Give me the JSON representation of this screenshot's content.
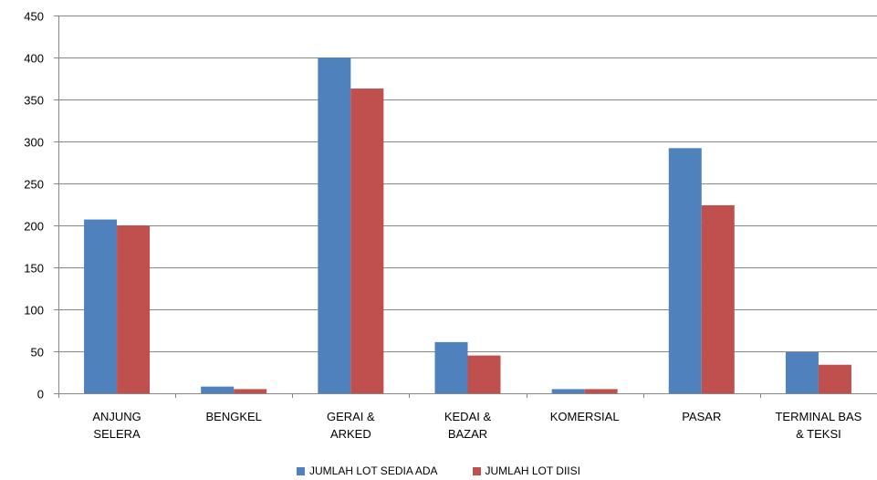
{
  "chart_data": {
    "type": "bar",
    "title": "",
    "xlabel": "",
    "ylabel": "",
    "ylim": [
      0,
      450
    ],
    "yticks": [
      0,
      50,
      100,
      150,
      200,
      250,
      300,
      350,
      400,
      450
    ],
    "grid": true,
    "legend_position": "bottom",
    "categories": [
      [
        "ANJUNG",
        "SELERA"
      ],
      [
        "BENGKEL"
      ],
      [
        "GERAI &",
        "ARKED"
      ],
      [
        "KEDAI &",
        "BAZAR"
      ],
      [
        "KOMERSIAL"
      ],
      [
        "PASAR"
      ],
      [
        "TERMINAL BAS",
        "& TEKSI"
      ]
    ],
    "series": [
      {
        "name": "JUMLAH LOT SEDIA ADA",
        "color": "#4F81BD",
        "values": [
          207,
          8,
          400,
          61,
          5,
          292,
          49
        ]
      },
      {
        "name": "JUMLAH LOT DIISI",
        "color": "#C0504D",
        "values": [
          200,
          5,
          363,
          45,
          5,
          224,
          34
        ]
      }
    ]
  }
}
